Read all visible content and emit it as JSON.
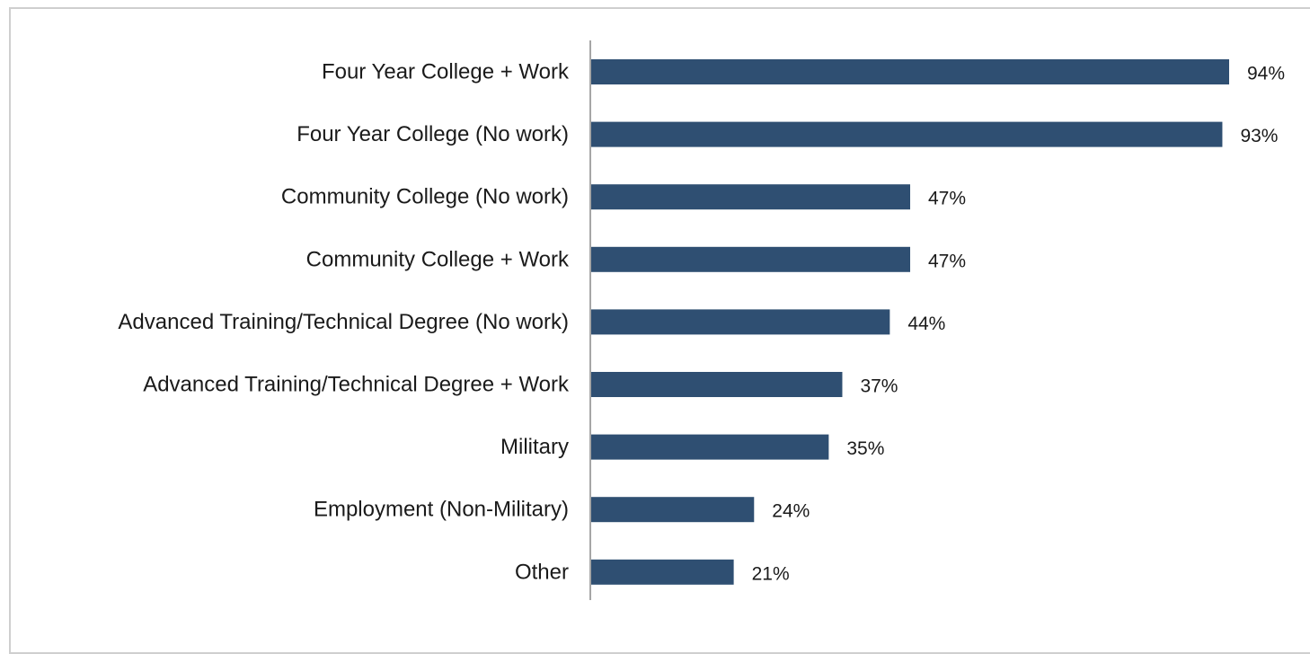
{
  "chart_data": {
    "type": "bar",
    "orientation": "horizontal",
    "categories": [
      "Four Year College + Work",
      "Four Year College (No work)",
      "Community College (No work)",
      "Community College + Work",
      "Advanced Training/Technical Degree (No work)",
      "Advanced Training/Technical Degree + Work",
      "Military",
      "Employment (Non-Military)",
      "Other"
    ],
    "values": [
      94,
      93,
      47,
      47,
      44,
      37,
      35,
      24,
      21
    ],
    "value_labels": [
      "94%",
      "93%",
      "47%",
      "47%",
      "44%",
      "37%",
      "35%",
      "24%",
      "21%"
    ],
    "xlim": [
      0,
      94
    ],
    "bar_color": "#2f4f72",
    "axis_color": "#a6a6a6",
    "grid": false,
    "legend": "none",
    "title": "",
    "xlabel": "",
    "ylabel": ""
  }
}
